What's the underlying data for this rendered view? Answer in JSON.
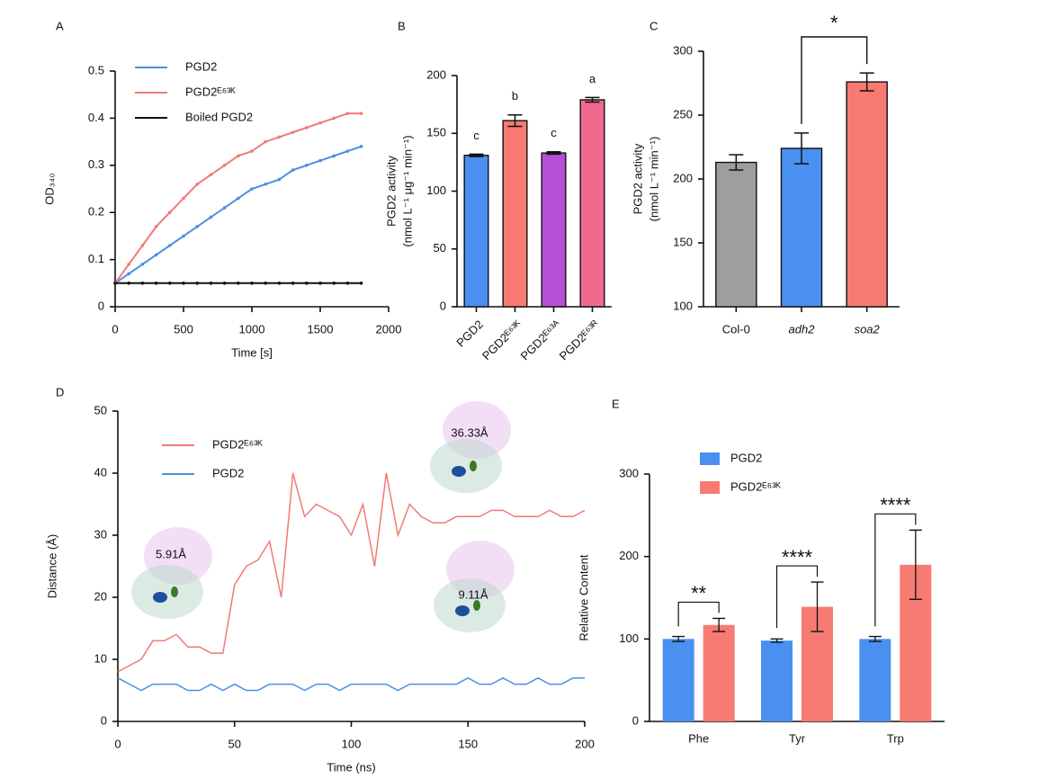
{
  "chart_data": [
    {
      "type": "line",
      "label": "A",
      "x_label": "Time [s]",
      "y_label": [
        "OD₃₄₀"
      ],
      "legend": "upper left",
      "x": [
        0,
        100,
        200,
        300,
        400,
        500,
        600,
        700,
        800,
        900,
        1000,
        1100,
        1200,
        1300,
        1400,
        1500,
        1600,
        1700,
        1800
      ],
      "xlim": [
        0,
        2000
      ],
      "xticks": [
        0,
        500,
        1000,
        1500,
        2000
      ],
      "ylim": [
        0,
        0.5
      ],
      "yticks": [
        0,
        0.1,
        0.2,
        0.3,
        0.4,
        0.5
      ],
      "series": [
        {
          "name": "PGD2",
          "color": "#4a90e2",
          "values": [
            0.05,
            0.07,
            0.09,
            0.11,
            0.13,
            0.15,
            0.17,
            0.19,
            0.21,
            0.23,
            0.25,
            0.26,
            0.27,
            0.29,
            0.3,
            0.31,
            0.32,
            0.33,
            0.34
          ]
        },
        {
          "name": "PGD2ᴱ⁶³ᴷ",
          "color": "#f07b78",
          "values": [
            0.05,
            0.09,
            0.13,
            0.17,
            0.2,
            0.23,
            0.26,
            0.28,
            0.3,
            0.32,
            0.33,
            0.35,
            0.36,
            0.37,
            0.38,
            0.39,
            0.4,
            0.41,
            0.41
          ]
        },
        {
          "name": "Boiled PGD2",
          "color": "#111111",
          "values": [
            0.05,
            0.05,
            0.05,
            0.05,
            0.05,
            0.05,
            0.05,
            0.05,
            0.05,
            0.05,
            0.05,
            0.05,
            0.05,
            0.05,
            0.05,
            0.05,
            0.05,
            0.05,
            0.05
          ]
        }
      ]
    },
    {
      "type": "bar",
      "label": "B",
      "y_label": [
        "PGD2 activity",
        "(nmol L⁻¹ μg⁻¹ min⁻¹)"
      ],
      "categories": [
        "PGD2",
        "PGD2ᴱ⁶³ᴷ",
        "PGD2ᴱ⁶³ᴬ",
        "PGD2ᴱ⁶³ᴿ"
      ],
      "values": [
        131,
        161,
        133,
        179
      ],
      "errors": [
        1,
        5,
        1,
        2
      ],
      "letters": [
        "c",
        "b",
        "c",
        "a"
      ],
      "colors": [
        "#4a90f0",
        "#f77b72",
        "#b44fd6",
        "#f06a8f"
      ],
      "ylim": [
        0,
        200
      ],
      "yticks": [
        0,
        50,
        100,
        150,
        200
      ]
    },
    {
      "type": "bar",
      "label": "C",
      "y_label": [
        "PGD2 activity",
        "(nmol L⁻¹ min⁻¹)"
      ],
      "categories": [
        "Col-0",
        "adh2",
        "soa2"
      ],
      "values": [
        213,
        224,
        276
      ],
      "errors": [
        6,
        12,
        7
      ],
      "colors": [
        "#9e9e9e",
        "#4a90f0",
        "#f77b72"
      ],
      "significance": [
        {
          "pair": [
            1,
            2
          ],
          "label": "*"
        }
      ],
      "ylim": [
        100,
        300
      ],
      "yticks": [
        100,
        150,
        200,
        250,
        300
      ]
    },
    {
      "type": "line",
      "label": "D",
      "x_label": "Time (ns)",
      "y_label": [
        "Distance (Å)"
      ],
      "legend": "upper left",
      "annotations": [
        "5.91Å",
        "36.33Å",
        "9.11Å"
      ],
      "x": [
        0,
        5,
        10,
        15,
        20,
        25,
        30,
        35,
        40,
        45,
        50,
        55,
        60,
        65,
        70,
        75,
        80,
        85,
        90,
        95,
        100,
        105,
        110,
        115,
        120,
        125,
        130,
        135,
        140,
        145,
        150,
        155,
        160,
        165,
        170,
        175,
        180,
        185,
        190,
        195,
        200
      ],
      "xlim": [
        0,
        200
      ],
      "xticks": [
        0,
        50,
        100,
        150,
        200
      ],
      "ylim": [
        0,
        50
      ],
      "yticks": [
        0,
        10,
        20,
        30,
        40,
        50
      ],
      "series": [
        {
          "name": "PGD2ᴱ⁶³ᴷ",
          "color": "#f07b78",
          "values": [
            8,
            9,
            10,
            13,
            13,
            14,
            12,
            12,
            11,
            11,
            22,
            25,
            26,
            29,
            20,
            40,
            33,
            35,
            34,
            33,
            30,
            35,
            25,
            40,
            30,
            35,
            33,
            32,
            32,
            33,
            33,
            33,
            34,
            34,
            33,
            33,
            33,
            34,
            33,
            33,
            34
          ]
        },
        {
          "name": "PGD2",
          "color": "#4a90e2",
          "values": [
            7,
            6,
            5,
            6,
            6,
            6,
            5,
            5,
            6,
            5,
            6,
            5,
            5,
            6,
            6,
            6,
            5,
            6,
            6,
            5,
            6,
            6,
            6,
            6,
            5,
            6,
            6,
            6,
            6,
            6,
            7,
            6,
            6,
            7,
            6,
            6,
            7,
            6,
            6,
            7,
            7
          ]
        }
      ]
    },
    {
      "type": "grouped_bar",
      "label": "E",
      "y_label": [
        "Relative Content"
      ],
      "legend": "upper left",
      "categories": [
        "Phe",
        "Tyr",
        "Trp"
      ],
      "series": [
        {
          "name": "PGD2",
          "color": "#4a90f0",
          "values": [
            100,
            98,
            100
          ],
          "errors": [
            3,
            2,
            3
          ]
        },
        {
          "name": "PGD2ᴱ⁶³ᴷ",
          "color": "#f77b72",
          "values": [
            117,
            139,
            190
          ],
          "errors": [
            8,
            30,
            42
          ]
        }
      ],
      "significance": [
        "**",
        "****",
        "****"
      ],
      "ylim": [
        0,
        300
      ],
      "yticks": [
        0,
        100,
        200,
        300
      ]
    }
  ]
}
